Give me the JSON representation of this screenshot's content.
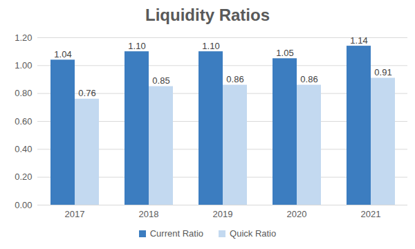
{
  "chart_data": {
    "type": "bar",
    "title": "Liquidity Ratios",
    "categories": [
      "2017",
      "2018",
      "2019",
      "2020",
      "2021"
    ],
    "series": [
      {
        "name": "Current Ratio",
        "color": "#3c7dc0",
        "values": [
          1.04,
          1.1,
          1.1,
          1.05,
          1.14
        ],
        "value_labels": [
          "1.04",
          "1.10",
          "1.10",
          "1.05",
          "1.14"
        ]
      },
      {
        "name": "Quick Ratio",
        "color": "#c3d9f0",
        "values": [
          0.76,
          0.85,
          0.86,
          0.86,
          0.91
        ],
        "value_labels": [
          "0.76",
          "0.85",
          "0.86",
          "0.86",
          "0.91"
        ]
      }
    ],
    "ylim": [
      0,
      1.2
    ],
    "yticks": [
      {
        "value": 0,
        "label": "0.00"
      },
      {
        "value": 0.2,
        "label": "0.20"
      },
      {
        "value": 0.4,
        "label": "0.40"
      },
      {
        "value": 0.6,
        "label": "0.60"
      },
      {
        "value": 0.8,
        "label": "0.80"
      },
      {
        "value": 1,
        "label": "1.00"
      },
      {
        "value": 1.2,
        "label": "1.20"
      }
    ],
    "grid": true,
    "data_labels": true,
    "legend": "bottom"
  }
}
